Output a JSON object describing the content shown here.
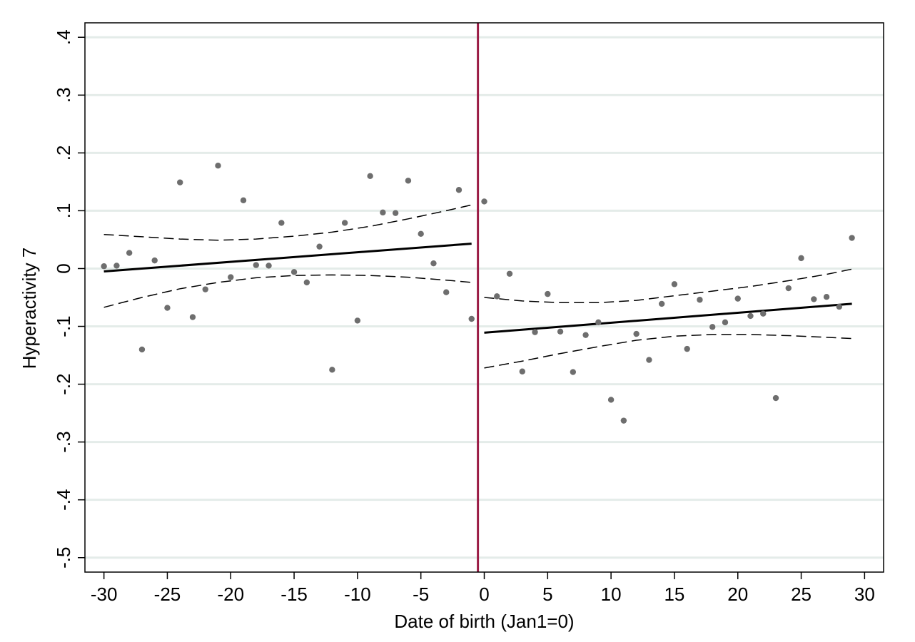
{
  "chart_data": {
    "type": "scatter",
    "xlabel": "Date of birth (Jan1=0)",
    "ylabel": "Hyperactivity 7",
    "xlim": [
      -31.5,
      31.5
    ],
    "ylim": [
      -0.525,
      0.425
    ],
    "xticks": [
      -30,
      -25,
      -20,
      -15,
      -10,
      -5,
      0,
      5,
      10,
      15,
      20,
      25,
      30
    ],
    "xtick_labels": [
      "-30",
      "-25",
      "-20",
      "-15",
      "-10",
      "-5",
      "0",
      "5",
      "10",
      "15",
      "20",
      "25",
      "30"
    ],
    "yticks": [
      0.4,
      0.3,
      0.2,
      0.1,
      0,
      -0.1,
      -0.2,
      -0.3,
      -0.4,
      -0.5
    ],
    "ytick_labels": [
      ".4",
      ".3",
      ".2",
      ".1",
      "0",
      "-.1",
      "-.2",
      "-.3",
      "-.4",
      "-.5"
    ],
    "grid": "horizontal",
    "cutoff_x": -0.5,
    "colors": {
      "points": "#6e6e6e",
      "fit": "#000000",
      "cutoff": "#9b1b45",
      "grid": "#e4ece9"
    },
    "series": [
      {
        "kind": "points",
        "x": [
          -30,
          -29,
          -28,
          -27,
          -26,
          -25,
          -24,
          -23,
          -22,
          -21,
          -20,
          -19,
          -18,
          -17,
          -16,
          -15,
          -14,
          -13,
          -12,
          -11,
          -10,
          -9,
          -8,
          -7,
          -6,
          -5,
          -4,
          -3,
          -2,
          -1,
          0,
          1,
          2,
          3,
          4,
          5,
          6,
          7,
          8,
          9,
          10,
          11,
          12,
          13,
          14,
          15,
          16,
          17,
          18,
          19,
          20,
          21,
          22,
          23,
          24,
          25,
          26,
          27,
          28,
          29
        ],
        "y": [
          0.004,
          0.005,
          0.027,
          -0.14,
          0.014,
          -0.068,
          0.149,
          -0.084,
          -0.036,
          0.178,
          -0.015,
          0.118,
          0.006,
          0.005,
          0.079,
          -0.006,
          -0.024,
          0.038,
          -0.175,
          0.079,
          -0.09,
          0.16,
          0.097,
          0.096,
          0.152,
          0.06,
          0.009,
          -0.041,
          0.136,
          -0.087,
          0.116,
          -0.048,
          -0.009,
          -0.178,
          -0.11,
          -0.044,
          -0.109,
          -0.179,
          -0.115,
          -0.093,
          -0.227,
          -0.263,
          -0.113,
          -0.158,
          -0.061,
          -0.027,
          -0.139,
          -0.054,
          -0.101,
          -0.093,
          -0.052,
          -0.082,
          -0.078,
          -0.224,
          -0.034,
          0.018,
          -0.053,
          -0.049,
          -0.066,
          0.053
        ]
      },
      {
        "kind": "fit-left",
        "x": [
          -30,
          -1
        ],
        "y": [
          -0.005,
          0.043
        ]
      },
      {
        "kind": "ci-left-upper",
        "x": [
          -30,
          -27,
          -24,
          -21,
          -18,
          -15,
          -12,
          -9,
          -6,
          -3,
          -1
        ],
        "y": [
          0.059,
          0.055,
          0.051,
          0.049,
          0.051,
          0.056,
          0.063,
          0.073,
          0.086,
          0.1,
          0.11
        ]
      },
      {
        "kind": "ci-left-lower",
        "x": [
          -30,
          -27,
          -24,
          -21,
          -18,
          -15,
          -12,
          -9,
          -6,
          -3,
          -1
        ],
        "y": [
          -0.067,
          -0.05,
          -0.035,
          -0.024,
          -0.016,
          -0.012,
          -0.011,
          -0.012,
          -0.015,
          -0.02,
          -0.024
        ]
      },
      {
        "kind": "fit-right",
        "x": [
          0,
          29
        ],
        "y": [
          -0.111,
          -0.061
        ]
      },
      {
        "kind": "ci-right-upper",
        "x": [
          0,
          3,
          6,
          9,
          12,
          15,
          18,
          21,
          24,
          27,
          29
        ],
        "y": [
          -0.05,
          -0.056,
          -0.059,
          -0.059,
          -0.055,
          -0.047,
          -0.039,
          -0.031,
          -0.021,
          -0.01,
          -0.001
        ]
      },
      {
        "kind": "ci-right-lower",
        "x": [
          0,
          3,
          6,
          9,
          12,
          15,
          18,
          21,
          24,
          27,
          29
        ],
        "y": [
          -0.172,
          -0.16,
          -0.147,
          -0.135,
          -0.124,
          -0.117,
          -0.114,
          -0.114,
          -0.116,
          -0.119,
          -0.121
        ]
      }
    ]
  }
}
